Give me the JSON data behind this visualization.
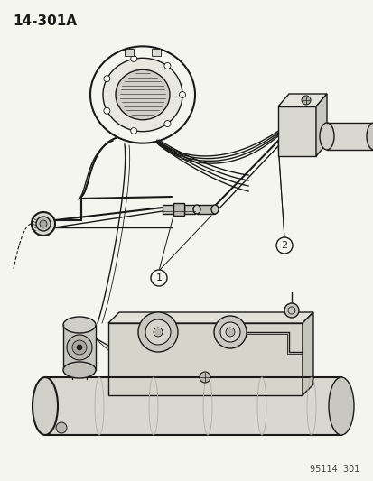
{
  "title_code": "14-301A",
  "part_number": "95114  301",
  "bg_color": "#f5f5f0",
  "line_color": "#1a1a1a",
  "label1": "1",
  "label2": "2",
  "title_fontsize": 11,
  "footnote_fontsize": 7
}
